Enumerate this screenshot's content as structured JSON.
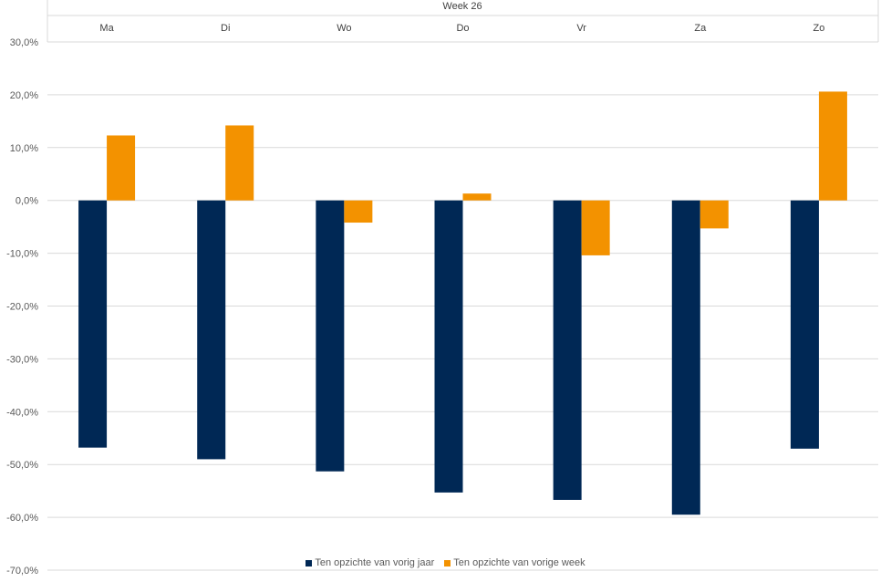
{
  "chart_data": {
    "type": "bar",
    "group_label": "Week 26",
    "categories": [
      "Ma",
      "Di",
      "Wo",
      "Do",
      "Vr",
      "Za",
      "Zo"
    ],
    "series": [
      {
        "name": "Ten opzichte van vorig jaar",
        "color": "#002855",
        "values": [
          -46.8,
          -49.0,
          -51.3,
          -55.3,
          -56.7,
          -59.5,
          -47.0
        ]
      },
      {
        "name": "Ten opzichte van vorige week",
        "color": "#F39200",
        "values": [
          12.3,
          14.2,
          -4.2,
          1.3,
          -10.4,
          -5.3,
          20.6
        ]
      }
    ],
    "yticks": [
      "30,0%",
      "20,0%",
      "10,0%",
      "0,0%",
      "-10,0%",
      "-20,0%",
      "-30,0%",
      "-40,0%",
      "-50,0%",
      "-60,0%",
      "-70,0%"
    ],
    "ylim": [
      -70,
      30
    ],
    "grid": true,
    "legend_position": "bottom"
  }
}
